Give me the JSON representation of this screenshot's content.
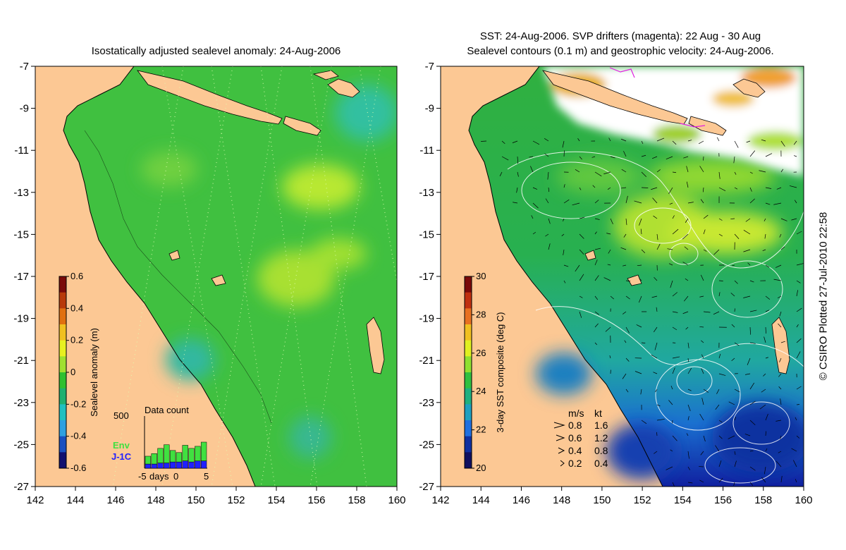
{
  "left_panel": {
    "title": "Isostatically adjusted sealevel anomaly: 24-Aug-2006",
    "x_ticks": [
      "142",
      "144",
      "146",
      "148",
      "150",
      "152",
      "154",
      "156",
      "158",
      "160"
    ],
    "y_ticks": [
      "-7",
      "-9",
      "-11",
      "-13",
      "-15",
      "-17",
      "-19",
      "-21",
      "-23",
      "-25",
      "-27"
    ],
    "colorbar": {
      "label": "Sealevel anomaly (m)",
      "ticks": [
        "0.6",
        "0.4",
        "0.2",
        "0",
        "-0.2",
        "-0.4",
        "-0.6"
      ],
      "colors": [
        "#7a0a0a",
        "#b83a0a",
        "#e07010",
        "#f0c020",
        "#e8f020",
        "#a0e030",
        "#30c030",
        "#20b070",
        "#20c0c0",
        "#30a0e0",
        "#1a50c0",
        "#101070"
      ]
    },
    "data_count": {
      "title": "Data count",
      "y_max": "500",
      "x_ticks": [
        "-5",
        "days",
        "0",
        "5"
      ],
      "legend": [
        "Env",
        "J-1C"
      ],
      "legend_colors": [
        "#40e040",
        "#2020ff"
      ],
      "env_heights": [
        0.15,
        0.2,
        0.28,
        0.35,
        0.22,
        0.18,
        0.3,
        0.26,
        0.28,
        0.36
      ],
      "j1c_heights": [
        0.08,
        0.08,
        0.1,
        0.1,
        0.12,
        0.12,
        0.14,
        0.12,
        0.14,
        0.14
      ]
    },
    "colors": {
      "land": "#fcc894",
      "sea": "#40c040"
    }
  },
  "right_panel": {
    "title_line1": "SST: 24-Aug-2006. SVP drifters (magenta): 22 Aug - 30 Aug",
    "title_line2": "Sealevel contours (0.1 m) and geostrophic velocity: 24-Aug-2006.",
    "x_ticks": [
      "142",
      "144",
      "146",
      "148",
      "150",
      "152",
      "154",
      "156",
      "158",
      "160"
    ],
    "y_ticks": [
      "-7",
      "-9",
      "-11",
      "-13",
      "-15",
      "-17",
      "-19",
      "-21",
      "-23",
      "-25",
      "-27"
    ],
    "colorbar": {
      "label": "3-day SST composite (deg C)",
      "ticks": [
        "30",
        "28",
        "26",
        "24",
        "22",
        "20"
      ],
      "colors": [
        "#7a0a0a",
        "#c03010",
        "#e87020",
        "#f0c020",
        "#e0f020",
        "#90e030",
        "#30c040",
        "#20b080",
        "#20a0c0",
        "#2070e0",
        "#1030a0",
        "#101060"
      ]
    },
    "velocity_legend": {
      "header_ms": "m/s",
      "header_kt": "kt",
      "rows": [
        {
          "ms": "0.8",
          "kt": "1.6"
        },
        {
          "ms": "0.6",
          "kt": "1.2"
        },
        {
          "ms": "0.4",
          "kt": "0.8"
        },
        {
          "ms": "0.2",
          "kt": "0.4"
        }
      ]
    }
  },
  "copyright": "© CSIRO Plotted 27-Jul-2010 22:58"
}
